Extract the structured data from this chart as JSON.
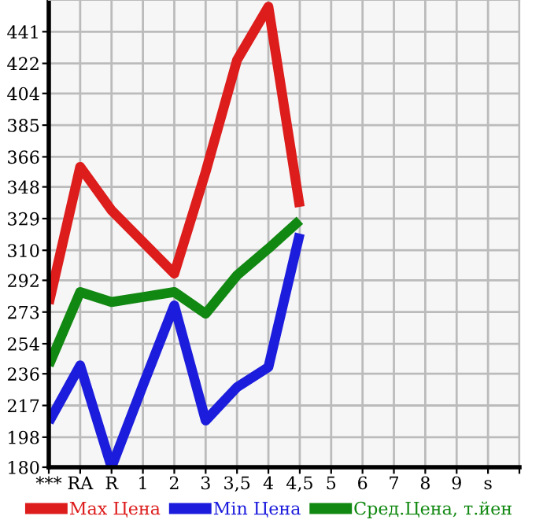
{
  "chart_data": {
    "type": "line",
    "categories": [
      "***",
      "RA",
      "R",
      "1",
      "2",
      "3",
      "3,5",
      "4",
      "4,5",
      "5",
      "6",
      "7",
      "8",
      "9",
      "s",
      null
    ],
    "series": [
      {
        "name": "Max Цена",
        "color": "#dd1c1c",
        "values": [
          278,
          360,
          334,
          315,
          296,
          357,
          424,
          456,
          336,
          null,
          null,
          null,
          null,
          null,
          null,
          null
        ]
      },
      {
        "name": "Min Цена",
        "color": "#1c1cdd",
        "values": [
          207,
          241,
          180,
          229,
          277,
          208,
          228,
          240,
          320,
          null,
          null,
          null,
          null,
          null,
          null,
          null
        ]
      },
      {
        "name": "Сред.Цена, т.йен",
        "color": "#118811",
        "values": [
          241,
          285,
          279,
          282,
          285,
          272,
          295,
          311,
          328,
          null,
          null,
          null,
          null,
          null,
          null,
          null
        ]
      }
    ],
    "ylim": [
      180,
      460
    ],
    "yticks": [
      180,
      198,
      217,
      236,
      254,
      273,
      292,
      310,
      329,
      348,
      366,
      385,
      404,
      422,
      441
    ],
    "grid": true,
    "legend": "bottom",
    "marker": "none",
    "line_style": "solid"
  }
}
